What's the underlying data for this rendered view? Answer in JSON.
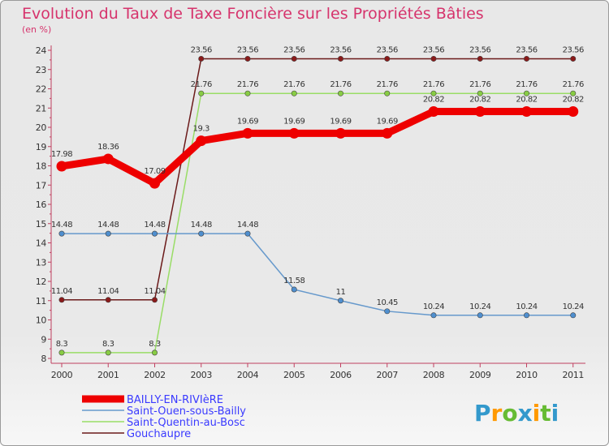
{
  "chart_data": {
    "type": "line",
    "title": "Evolution du Taux de Taxe Foncière sur les Propriétés Bâties",
    "subtitle": "(en %)",
    "xlabel": "",
    "ylabel": "(en %)",
    "ylim": [
      8,
      24
    ],
    "yticks": [
      8,
      9,
      10,
      11,
      12,
      13,
      14,
      15,
      16,
      17,
      18,
      19,
      20,
      21,
      22,
      23,
      24
    ],
    "grid": false,
    "legend_position": "bottom-left",
    "x": [
      "2000",
      "2001",
      "2002",
      "2003",
      "2004",
      "2005",
      "2006",
      "2007",
      "2008",
      "2009",
      "2010",
      "2011"
    ],
    "series": [
      {
        "name": "Gouchaupre",
        "color": "#6b1a1a",
        "marker": "#8b1a1a",
        "values": [
          11.04,
          11.04,
          11.04,
          23.56,
          23.56,
          23.56,
          23.56,
          23.56,
          23.56,
          23.56,
          23.56,
          23.56
        ],
        "labels": [
          "11.04",
          "11.04",
          "11.04",
          "23.56",
          "23.56",
          "23.56",
          "23.56",
          "23.56",
          "23.56",
          "23.56",
          "23.56",
          "23.56"
        ]
      },
      {
        "name": "Saint-Quentin-au-Bosc",
        "color": "#99dd66",
        "marker": "#88cc44",
        "values": [
          8.3,
          8.3,
          8.3,
          21.76,
          21.76,
          21.76,
          21.76,
          21.76,
          21.76,
          21.76,
          21.76,
          21.76
        ],
        "labels": [
          "8.3",
          "8.3",
          "8.3",
          "21.76",
          "21.76",
          "21.76",
          "21.76",
          "21.76",
          "21.76",
          "21.76",
          "21.76",
          "21.76"
        ]
      },
      {
        "name": "Saint-Ouen-sous-Bailly",
        "color": "#6699cc",
        "marker": "#4f8fcf",
        "values": [
          14.48,
          14.48,
          14.48,
          14.48,
          14.48,
          11.58,
          11,
          10.45,
          10.24,
          10.24,
          10.24,
          10.24
        ],
        "labels": [
          "14.48",
          "14.48",
          "14.48",
          "14.48",
          "14.48",
          "11.58",
          "11",
          "10.45",
          "10.24",
          "10.24",
          "10.24",
          "10.24"
        ]
      },
      {
        "name": "BAILLY-EN-RIVIèRE",
        "color": "#ee0000",
        "marker": "#ee0000",
        "values": [
          17.98,
          18.36,
          17.09,
          19.3,
          19.69,
          19.69,
          19.69,
          19.69,
          20.82,
          20.82,
          20.82,
          20.82
        ],
        "labels": [
          "17.98",
          "18.36",
          "17.09",
          "19.3",
          "19.69",
          "19.69",
          "19.69",
          "19.69",
          "20.82",
          "20.82",
          "20.82",
          "20.82"
        ]
      }
    ],
    "legend": [
      "BAILLY-EN-RIVIèRE",
      "Saint-Ouen-sous-Bailly",
      "Saint-Quentin-au-Bosc",
      "Gouchaupre"
    ]
  },
  "logo": {
    "text": "Proxiti",
    "letters": [
      "P",
      "r",
      "o",
      "x",
      "i",
      "t",
      "i"
    ],
    "colors": [
      "#3399cc",
      "#ff9900",
      "#66bb33",
      "#3399cc",
      "#ff9900",
      "#66bb33",
      "#3399cc"
    ]
  }
}
